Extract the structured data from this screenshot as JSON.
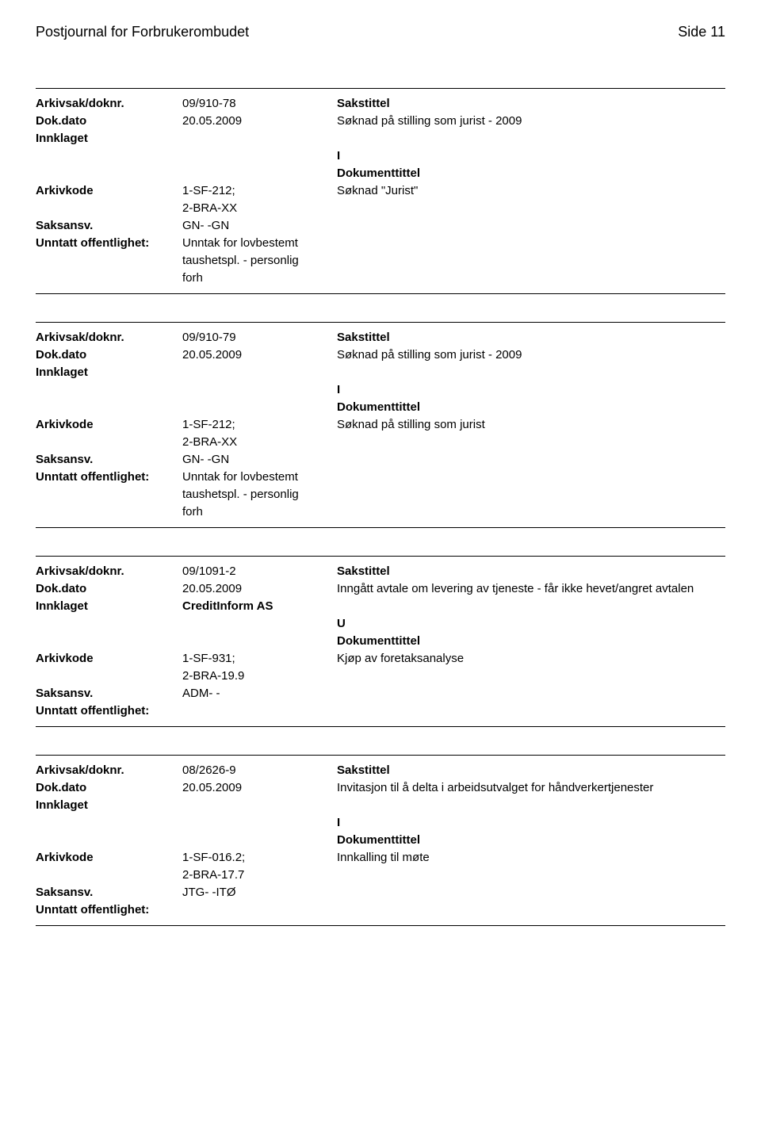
{
  "page": {
    "title": "Postjournal for Forbrukerombudet",
    "pageNumber": "Side 11"
  },
  "labels": {
    "arkivsakDoknr": "Arkivsak/doknr.",
    "dokDato": "Dok.dato",
    "innklaget": "Innklaget",
    "arkivkode": "Arkivkode",
    "saksansv": "Saksansv.",
    "unntattOffentlighet": "Unntatt offentlighet:",
    "sakstittel": "Sakstittel",
    "dokumenttittel": "Dokumenttittel"
  },
  "records": [
    {
      "arkivsakDoknr": "09/910-78",
      "dokDato": "20.05.2009",
      "sakstittel": "Søknad på stilling som jurist - 2009",
      "innklaget": "",
      "dokType": "I",
      "arkivkode1": "1-SF-212;",
      "arkivkode2": "2-BRA-XX",
      "dokumenttittel": "Søknad \"Jurist\"",
      "saksansv": "GN- -GN",
      "unntatt1": "Unntak for lovbestemt",
      "unntatt2": "taushetspl. - personlig",
      "unntatt3": "forh"
    },
    {
      "arkivsakDoknr": "09/910-79",
      "dokDato": "20.05.2009",
      "sakstittel": "Søknad på stilling som jurist - 2009",
      "innklaget": "",
      "dokType": "I",
      "arkivkode1": "1-SF-212;",
      "arkivkode2": "2-BRA-XX",
      "dokumenttittel": "Søknad på stilling som jurist",
      "saksansv": "GN- -GN",
      "unntatt1": "Unntak for lovbestemt",
      "unntatt2": "taushetspl. - personlig",
      "unntatt3": "forh"
    },
    {
      "arkivsakDoknr": "09/1091-2",
      "dokDato": "20.05.2009",
      "sakstittel": "Inngått avtale om levering av tjeneste - får ikke hevet/angret avtalen",
      "innklaget": "CreditInform AS",
      "dokType": "U",
      "arkivkode1": "1-SF-931;",
      "arkivkode2": "2-BRA-19.9",
      "dokumenttittel": "Kjøp av foretaksanalyse",
      "saksansv": "ADM- -",
      "unntatt1": "",
      "unntatt2": "",
      "unntatt3": ""
    },
    {
      "arkivsakDoknr": "08/2626-9",
      "dokDato": "20.05.2009",
      "sakstittel": "Invitasjon til å delta i arbeidsutvalget for håndverkertjenester",
      "innklaget": "",
      "dokType": "I",
      "arkivkode1": "1-SF-016.2;",
      "arkivkode2": "2-BRA-17.7",
      "dokumenttittel": "Innkalling til møte",
      "saksansv": "JTG- -ITØ",
      "unntatt1": "",
      "unntatt2": "",
      "unntatt3": ""
    }
  ]
}
